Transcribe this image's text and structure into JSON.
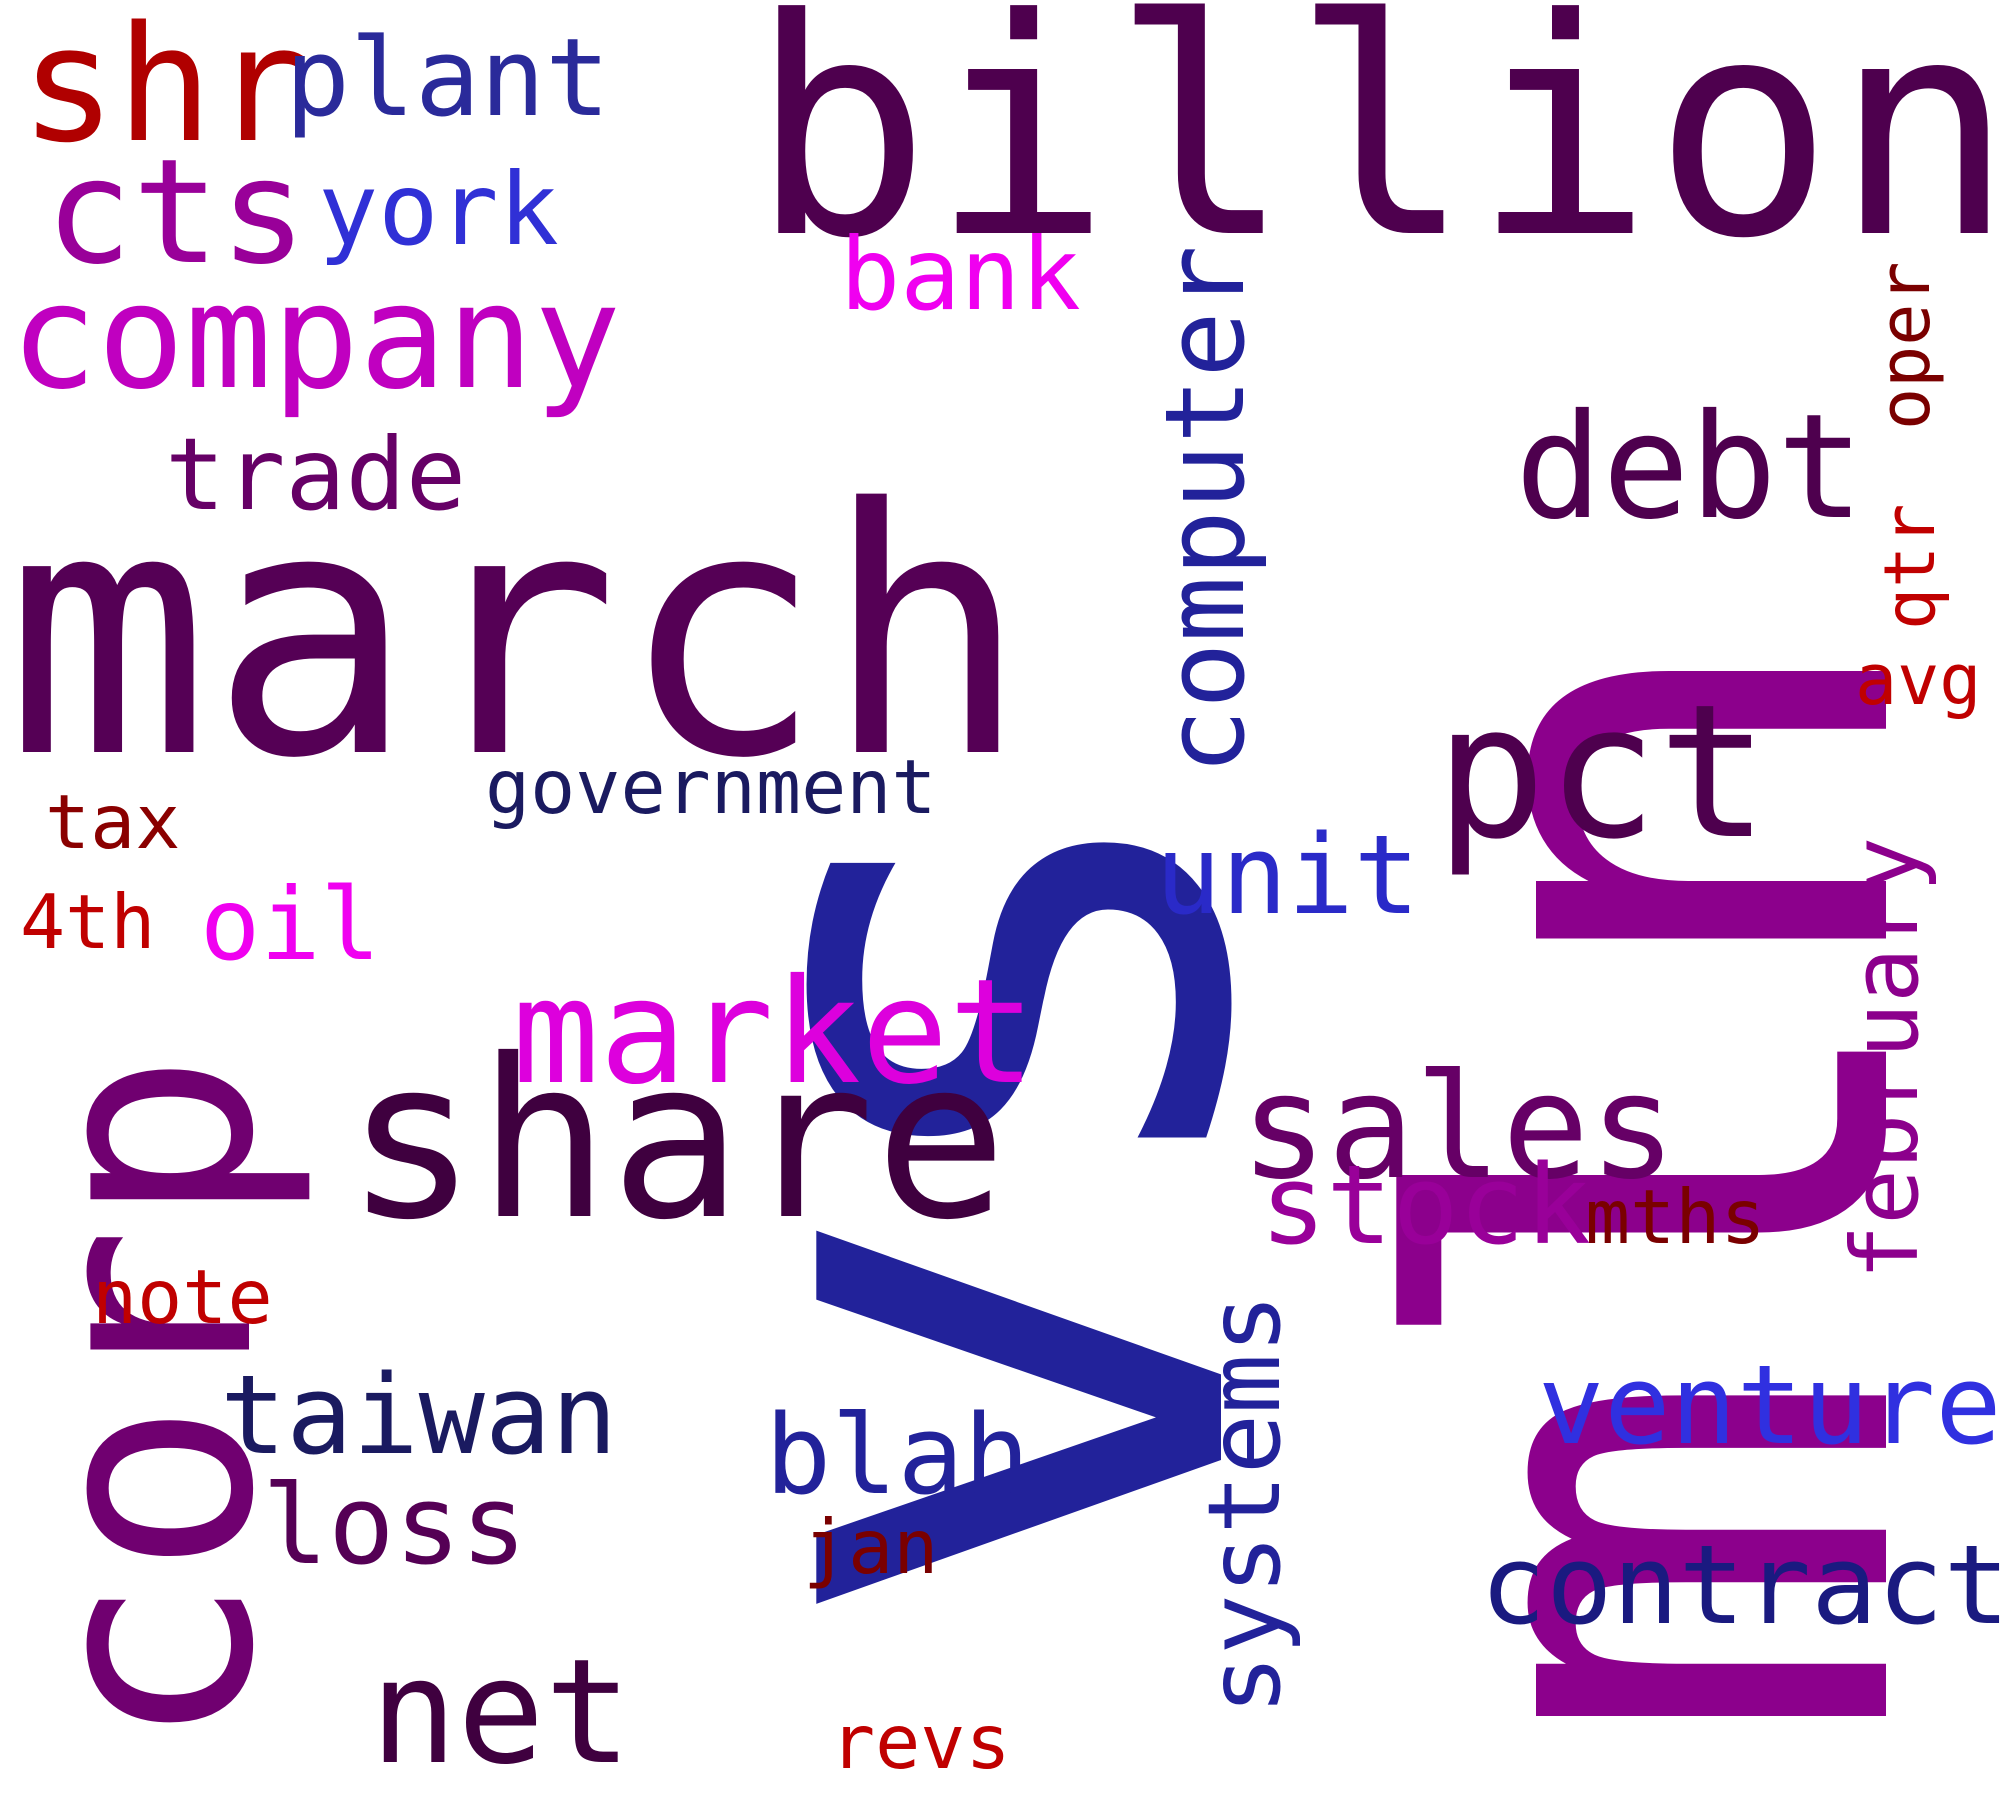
{
  "words": [
    {
      "id": "word-vs",
      "text": "vs",
      "color": "#22229a"
    },
    {
      "id": "word-mln",
      "text": "mln",
      "color": "#8c008c"
    },
    {
      "id": "word-billion",
      "text": "billion",
      "color": "#4e004e"
    },
    {
      "id": "word-march",
      "text": "march",
      "color": "#550055"
    },
    {
      "id": "word-corp",
      "text": "corp",
      "color": "#700070"
    },
    {
      "id": "word-share",
      "text": "share",
      "color": "#3f003f"
    },
    {
      "id": "word-shr",
      "text": "shr",
      "color": "#b00000"
    },
    {
      "id": "word-plant",
      "text": "plant",
      "color": "#2a2a9a"
    },
    {
      "id": "word-cts",
      "text": "cts",
      "color": "#990099"
    },
    {
      "id": "word-york",
      "text": "york",
      "color": "#3030d6"
    },
    {
      "id": "word-company",
      "text": "company",
      "color": "#c000c0"
    },
    {
      "id": "word-bank",
      "text": "bank",
      "color": "#f000f0"
    },
    {
      "id": "word-trade",
      "text": "trade",
      "color": "#660066"
    },
    {
      "id": "word-computer",
      "text": "computer",
      "color": "#22229a"
    },
    {
      "id": "word-debt",
      "text": "debt",
      "color": "#4e004e"
    },
    {
      "id": "word-oper",
      "text": "oper",
      "color": "#7a0000"
    },
    {
      "id": "word-qtr",
      "text": "qtr",
      "color": "#c00000"
    },
    {
      "id": "word-avg",
      "text": "avg",
      "color": "#c00000"
    },
    {
      "id": "word-pct",
      "text": "pct",
      "color": "#4e004e"
    },
    {
      "id": "word-government",
      "text": "government",
      "color": "#1a1a60"
    },
    {
      "id": "word-tax",
      "text": "tax",
      "color": "#8a0000"
    },
    {
      "id": "word-4th",
      "text": "4th",
      "color": "#c00000"
    },
    {
      "id": "word-oil",
      "text": "oil",
      "color": "#f000f0"
    },
    {
      "id": "word-unit",
      "text": "unit",
      "color": "#2a2ac8"
    },
    {
      "id": "word-february",
      "text": "february",
      "color": "#8c008c"
    },
    {
      "id": "word-market",
      "text": "market",
      "color": "#dd00dd"
    },
    {
      "id": "word-sales",
      "text": "sales",
      "color": "#660066"
    },
    {
      "id": "word-stock",
      "text": "stock",
      "color": "#990099"
    },
    {
      "id": "word-mths",
      "text": "mths",
      "color": "#7a0000"
    },
    {
      "id": "word-note",
      "text": "note",
      "color": "#c00000"
    },
    {
      "id": "word-systems",
      "text": "systems",
      "color": "#22229a"
    },
    {
      "id": "word-venture",
      "text": "venture",
      "color": "#3030e0"
    },
    {
      "id": "word-taiwan",
      "text": "taiwan",
      "color": "#1a1a60"
    },
    {
      "id": "word-blah",
      "text": "blah",
      "color": "#22229a"
    },
    {
      "id": "word-loss",
      "text": "loss",
      "color": "#550055"
    },
    {
      "id": "word-jan",
      "text": "jan",
      "color": "#7a0000"
    },
    {
      "id": "word-contract",
      "text": "contract",
      "color": "#1a1a80"
    },
    {
      "id": "word-net",
      "text": "net",
      "color": "#3f003f"
    },
    {
      "id": "word-revs",
      "text": "revs",
      "color": "#c00000"
    }
  ]
}
